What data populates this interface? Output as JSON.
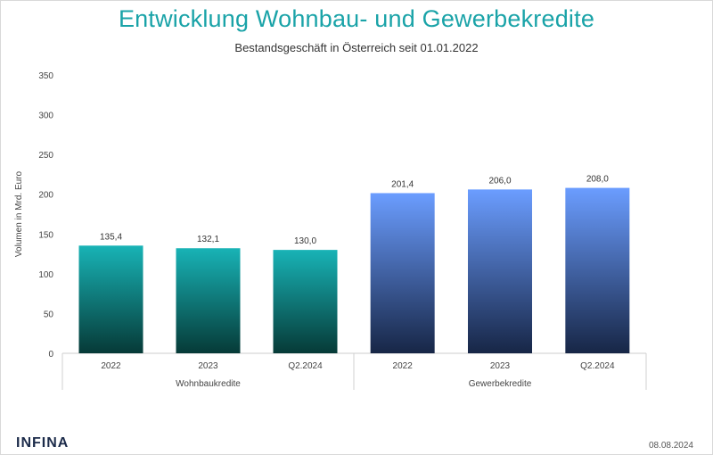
{
  "header": {
    "title": "Entwicklung Wohnbau- und Gewerbekredite",
    "subtitle": "Bestandsgeschäft in Österreich seit 01.01.2022"
  },
  "footer": {
    "logo": "INFINA",
    "date": "08.08.2024"
  },
  "colors": {
    "wohnbau_top": "#18b3b6",
    "wohnbau_bottom": "#063a37",
    "gewerbe_top": "#6b9dff",
    "gewerbe_bottom": "#172646",
    "title": "#1aa3a8"
  },
  "chart_data": {
    "type": "bar",
    "ylabel": "Volumen in Mrd. Euro",
    "ylim": [
      0,
      350
    ],
    "yticks": [
      0,
      50,
      100,
      150,
      200,
      250,
      300,
      350
    ],
    "grid": false,
    "groups": [
      {
        "name": "Wohnbaukredite",
        "categories": [
          "2022",
          "2023",
          "Q2.2024"
        ],
        "values": [
          135.4,
          132.1,
          130.0
        ],
        "labels": [
          "135,4",
          "132,1",
          "130,0"
        ]
      },
      {
        "name": "Gewerbekredite",
        "categories": [
          "2022",
          "2023",
          "Q2.2024"
        ],
        "values": [
          201.4,
          206.0,
          208.0
        ],
        "labels": [
          "201,4",
          "206,0",
          "208,0"
        ]
      }
    ]
  }
}
